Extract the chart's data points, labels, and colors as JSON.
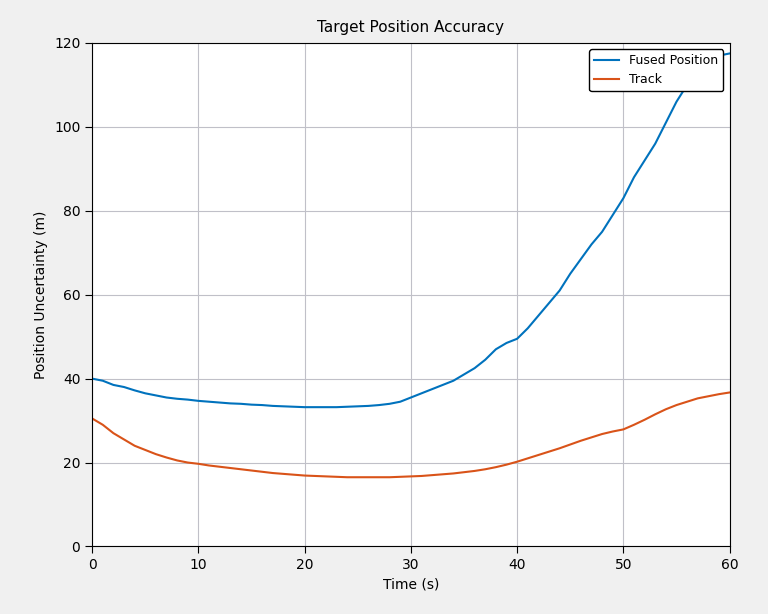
{
  "title": "Target Position Accuracy",
  "xlabel": "Time (s)",
  "ylabel": "Position Uncertainty (m)",
  "xlim": [
    0,
    60
  ],
  "ylim": [
    0,
    120
  ],
  "xticks": [
    0,
    10,
    20,
    30,
    40,
    50,
    60
  ],
  "yticks": [
    0,
    20,
    40,
    60,
    80,
    100,
    120
  ],
  "fused_color": "#0072BD",
  "track_color": "#D95319",
  "fused_label": "Fused Position",
  "track_label": "Track",
  "linewidth": 1.5,
  "figure_bg_color": "#F0F0F0",
  "axes_bg_color": "#FFFFFF",
  "grid_color": "#C0C0C8",
  "fused_x": [
    0,
    1,
    2,
    3,
    4,
    5,
    6,
    7,
    8,
    9,
    10,
    11,
    12,
    13,
    14,
    15,
    16,
    17,
    18,
    19,
    20,
    21,
    22,
    23,
    24,
    25,
    26,
    27,
    28,
    29,
    30,
    31,
    32,
    33,
    34,
    35,
    36,
    37,
    38,
    39,
    40,
    41,
    42,
    43,
    44,
    45,
    46,
    47,
    48,
    49,
    50,
    51,
    52,
    53,
    54,
    55,
    56,
    57,
    58,
    59,
    60
  ],
  "fused_y": [
    40.0,
    39.5,
    38.5,
    38.0,
    37.2,
    36.5,
    36.0,
    35.5,
    35.2,
    35.0,
    34.7,
    34.5,
    34.3,
    34.1,
    34.0,
    33.8,
    33.7,
    33.5,
    33.4,
    33.3,
    33.2,
    33.2,
    33.2,
    33.2,
    33.3,
    33.4,
    33.5,
    33.7,
    34.0,
    34.5,
    35.5,
    36.5,
    37.5,
    38.5,
    39.5,
    41.0,
    42.5,
    44.5,
    47.0,
    48.5,
    49.5,
    52.0,
    55.0,
    58.0,
    61.0,
    65.0,
    68.5,
    72.0,
    75.0,
    79.0,
    83.0,
    88.0,
    92.0,
    96.0,
    101.0,
    106.0,
    110.0,
    113.0,
    116.0,
    117.0,
    117.5
  ],
  "track_x": [
    0,
    1,
    2,
    3,
    4,
    5,
    6,
    7,
    8,
    9,
    10,
    11,
    12,
    13,
    14,
    15,
    16,
    17,
    18,
    19,
    20,
    21,
    22,
    23,
    24,
    25,
    26,
    27,
    28,
    29,
    30,
    31,
    32,
    33,
    34,
    35,
    36,
    37,
    38,
    39,
    40,
    41,
    42,
    43,
    44,
    45,
    46,
    47,
    48,
    49,
    50,
    51,
    52,
    53,
    54,
    55,
    56,
    57,
    58,
    59,
    60
  ],
  "track_y": [
    30.5,
    29.0,
    27.0,
    25.5,
    24.0,
    23.0,
    22.0,
    21.2,
    20.5,
    20.0,
    19.7,
    19.3,
    19.0,
    18.7,
    18.4,
    18.1,
    17.8,
    17.5,
    17.3,
    17.1,
    16.9,
    16.8,
    16.7,
    16.6,
    16.5,
    16.5,
    16.5,
    16.5,
    16.5,
    16.6,
    16.7,
    16.8,
    17.0,
    17.2,
    17.4,
    17.7,
    18.0,
    18.4,
    18.9,
    19.5,
    20.2,
    21.0,
    21.8,
    22.6,
    23.4,
    24.3,
    25.2,
    26.0,
    26.8,
    27.4,
    27.9,
    29.0,
    30.2,
    31.5,
    32.7,
    33.7,
    34.5,
    35.3,
    35.8,
    36.3,
    36.7
  ]
}
